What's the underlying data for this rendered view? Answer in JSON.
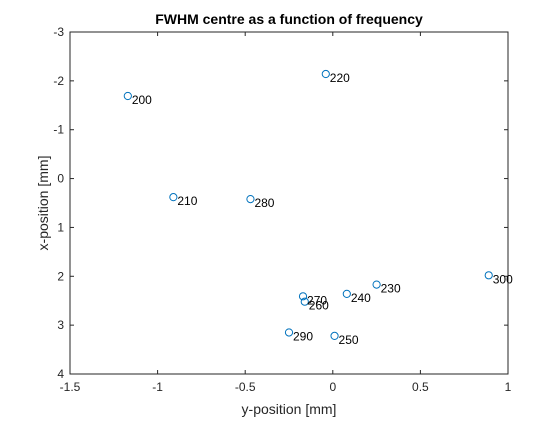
{
  "chart_data": {
    "type": "scatter",
    "title": "FWHM centre as a function of frequency",
    "xlabel": "y-position [mm]",
    "ylabel": "x-position [mm]",
    "xlim": [
      -1.5,
      1
    ],
    "ylim": [
      -3,
      4
    ],
    "y_reversed": true,
    "grid": false,
    "x_ticks": [
      "-1.5",
      "-1",
      "-0.5",
      "0",
      "0.5",
      "1"
    ],
    "y_ticks": [
      "-3",
      "-2",
      "-1",
      "0",
      "1",
      "2",
      "3",
      "4"
    ],
    "marker_color": "#0072BD",
    "points": [
      {
        "x": -1.17,
        "y": -1.69,
        "label": "200"
      },
      {
        "x": -0.91,
        "y": 0.38,
        "label": "210"
      },
      {
        "x": -0.04,
        "y": -2.14,
        "label": "220"
      },
      {
        "x": 0.25,
        "y": 2.17,
        "label": "230"
      },
      {
        "x": 0.08,
        "y": 2.36,
        "label": "240"
      },
      {
        "x": 0.01,
        "y": 3.22,
        "label": "250"
      },
      {
        "x": -0.16,
        "y": 2.52,
        "label": "260"
      },
      {
        "x": -0.17,
        "y": 2.41,
        "label": "270"
      },
      {
        "x": -0.47,
        "y": 0.42,
        "label": "280"
      },
      {
        "x": -0.25,
        "y": 3.15,
        "label": "290"
      },
      {
        "x": 0.89,
        "y": 1.98,
        "label": "300"
      }
    ]
  }
}
